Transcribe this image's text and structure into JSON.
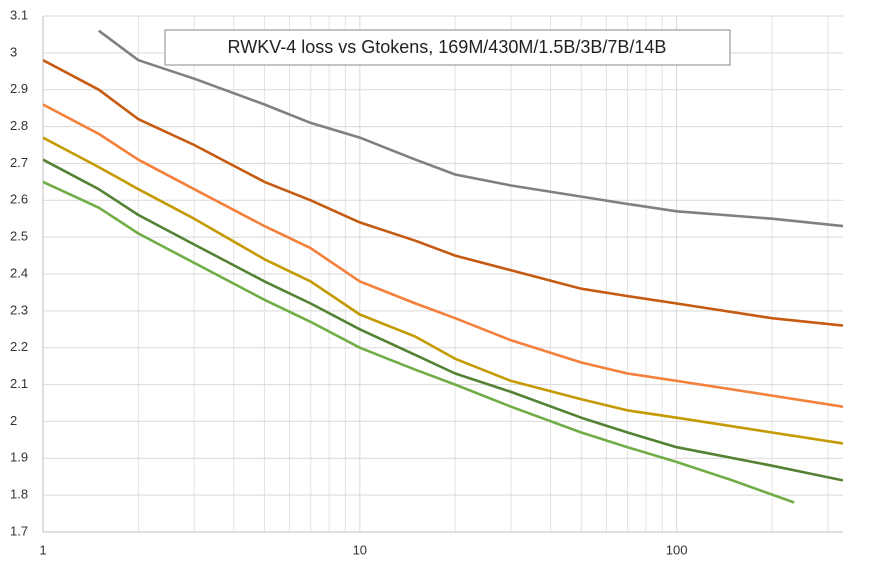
{
  "chart_data": {
    "type": "line",
    "title": "RWKV-4 loss vs Gtokens, 169M/430M/1.5B/3B/7B/14B",
    "xlog": true,
    "xlim": [
      1,
      335
    ],
    "xticks": [
      1,
      10,
      100
    ],
    "xminor": [
      2,
      3,
      4,
      5,
      6,
      7,
      8,
      9,
      20,
      30,
      40,
      50,
      60,
      70,
      80,
      90,
      200,
      300
    ],
    "ylim": [
      1.7,
      3.1
    ],
    "yticks": [
      1.7,
      1.8,
      1.9,
      2,
      2.1,
      2.2,
      2.3,
      2.4,
      2.5,
      2.6,
      2.7,
      2.8,
      2.9,
      3,
      3.1
    ],
    "grid": true,
    "series": [
      {
        "color": "#808080",
        "x": [
          1.5,
          2,
          3,
          5,
          7,
          10,
          15,
          20,
          30,
          50,
          70,
          100,
          200,
          335
        ],
        "values": [
          3.06,
          2.98,
          2.93,
          2.86,
          2.81,
          2.77,
          2.71,
          2.67,
          2.64,
          2.61,
          2.59,
          2.57,
          2.55,
          2.53
        ]
      },
      {
        "color": "#c55a11",
        "x": [
          1,
          1.5,
          2,
          3,
          5,
          7,
          10,
          15,
          20,
          30,
          50,
          70,
          100,
          200,
          335
        ],
        "values": [
          2.98,
          2.9,
          2.82,
          2.75,
          2.65,
          2.6,
          2.54,
          2.49,
          2.45,
          2.41,
          2.36,
          2.34,
          2.32,
          2.28,
          2.26
        ]
      },
      {
        "color": "#f4803c",
        "x": [
          1,
          1.5,
          2,
          3,
          5,
          7,
          10,
          15,
          20,
          30,
          50,
          70,
          100,
          200,
          335
        ],
        "values": [
          2.86,
          2.78,
          2.71,
          2.63,
          2.53,
          2.47,
          2.38,
          2.32,
          2.28,
          2.22,
          2.16,
          2.13,
          2.11,
          2.07,
          2.04
        ]
      },
      {
        "color": "#c49a00",
        "x": [
          1,
          1.5,
          2,
          3,
          5,
          7,
          10,
          15,
          20,
          30,
          50,
          70,
          100,
          200,
          335
        ],
        "values": [
          2.77,
          2.69,
          2.63,
          2.55,
          2.44,
          2.38,
          2.29,
          2.23,
          2.17,
          2.11,
          2.06,
          2.03,
          2.01,
          1.97,
          1.94
        ]
      },
      {
        "color": "#548235",
        "x": [
          1,
          1.5,
          2,
          3,
          5,
          7,
          10,
          15,
          20,
          30,
          50,
          70,
          100,
          200,
          335
        ],
        "values": [
          2.71,
          2.63,
          2.56,
          2.48,
          2.38,
          2.32,
          2.25,
          2.18,
          2.13,
          2.08,
          2.01,
          1.97,
          1.93,
          1.88,
          1.84
        ]
      },
      {
        "color": "#70ad47",
        "x": [
          1,
          1.5,
          2,
          3,
          5,
          7,
          10,
          15,
          20,
          30,
          50,
          70,
          100,
          150,
          235
        ],
        "values": [
          2.65,
          2.58,
          2.51,
          2.43,
          2.33,
          2.27,
          2.2,
          2.14,
          2.1,
          2.04,
          1.97,
          1.93,
          1.89,
          1.84,
          1.78
        ]
      }
    ]
  }
}
